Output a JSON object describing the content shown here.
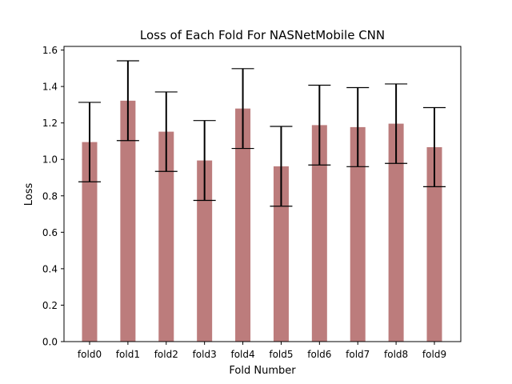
{
  "chart_data": {
    "type": "bar",
    "title": "Loss of Each Fold For NASNetMobile CNN",
    "xlabel": "Fold Number",
    "ylabel": "Loss",
    "categories": [
      "fold0",
      "fold1",
      "fold2",
      "fold3",
      "fold4",
      "fold5",
      "fold6",
      "fold7",
      "fold8",
      "fold9"
    ],
    "values": [
      1.095,
      1.322,
      1.152,
      0.994,
      1.279,
      0.962,
      1.188,
      1.177,
      1.196,
      1.067
    ],
    "error": [
      0.218,
      0.219,
      0.218,
      0.219,
      0.219,
      0.219,
      0.219,
      0.217,
      0.218,
      0.217
    ],
    "ylim": [
      0.0,
      1.62
    ],
    "yticks": [
      0.0,
      0.2,
      0.4,
      0.6,
      0.8,
      1.0,
      1.2,
      1.4,
      1.6
    ],
    "ytick_labels": [
      "0.0",
      "0.2",
      "0.4",
      "0.6",
      "0.8",
      "1.0",
      "1.2",
      "1.4",
      "1.6"
    ],
    "grid": false,
    "legend": "none",
    "bar_color": "#bc7c7c",
    "errorbar_color": "#000000"
  }
}
